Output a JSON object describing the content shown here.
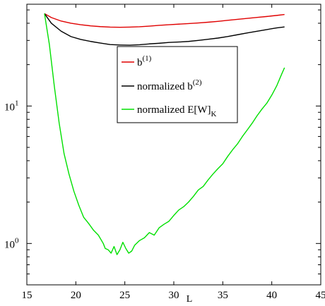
{
  "chart_data": {
    "type": "line",
    "title": "",
    "xlabel": "L",
    "ylabel": "",
    "xlim": [
      15,
      45
    ],
    "ylim": [
      0.5,
      55
    ],
    "yscale": "log",
    "grid": false,
    "legend_position": "center",
    "x_ticks": [
      {
        "value": 15,
        "label": "15"
      },
      {
        "value": 20,
        "label": "20"
      },
      {
        "value": 25,
        "label": "25"
      },
      {
        "value": 30,
        "label": "30"
      },
      {
        "value": 35,
        "label": "35"
      },
      {
        "value": 40,
        "label": "40"
      },
      {
        "value": 45,
        "label": "45"
      }
    ],
    "y_ticks": [
      {
        "value": 1,
        "base": "10",
        "exp": "0"
      },
      {
        "value": 10,
        "base": "10",
        "exp": "1"
      }
    ],
    "legend": [
      {
        "color": "#e00000",
        "base": "b",
        "sup": "(1)",
        "sub": ""
      },
      {
        "color": "#000000",
        "base": "normalized b",
        "sup": "(2)",
        "sub": ""
      },
      {
        "color": "#00e000",
        "base": "normalized E[W]",
        "sup": "",
        "sub": "K"
      }
    ],
    "series": [
      {
        "name": "b(1)",
        "color": "#e00000",
        "x": [
          16.8,
          17.5,
          18.5,
          19.5,
          20.5,
          21.5,
          22.5,
          23.5,
          24.5,
          25.5,
          26.5,
          27.5,
          28.5,
          29.5,
          30.5,
          31.5,
          32.5,
          33.5,
          34.5,
          35.5,
          36.5,
          37.5,
          38.5,
          39.5,
          40.5,
          41.3
        ],
        "y": [
          47,
          44,
          41.5,
          40,
          39,
          38.3,
          37.8,
          37.5,
          37.4,
          37.5,
          37.7,
          38.1,
          38.6,
          39,
          39.4,
          39.8,
          40.2,
          40.7,
          41.3,
          42,
          42.7,
          43.4,
          44.1,
          44.8,
          45.6,
          46.3
        ]
      },
      {
        "name": "normalized b(2)",
        "color": "#000000",
        "x": [
          16.8,
          17.5,
          18.5,
          19.5,
          20.5,
          21.5,
          22.5,
          23.5,
          24.5,
          25.5,
          26.5,
          27.5,
          28.5,
          29.5,
          30.5,
          31.5,
          32.5,
          33.5,
          34.5,
          35.5,
          36.5,
          37.5,
          38.5,
          39.5,
          40.5,
          41.3
        ],
        "y": [
          47,
          40,
          35,
          32,
          30.5,
          29.5,
          28.7,
          28,
          27.8,
          27.7,
          27.9,
          28.3,
          28.6,
          29,
          29.2,
          29.5,
          30,
          30.6,
          31.2,
          32,
          33,
          34,
          35,
          36,
          37,
          37.6
        ]
      },
      {
        "name": "normalized E[W]K",
        "color": "#00e000",
        "x": [
          16.8,
          17.3,
          17.8,
          18.3,
          18.8,
          19.3,
          19.8,
          20.3,
          20.8,
          21.3,
          21.8,
          22.3,
          22.8,
          23.0,
          23.3,
          23.6,
          23.9,
          24.2,
          24.5,
          24.8,
          25.1,
          25.4,
          25.7,
          26.0,
          26.5,
          27.0,
          27.5,
          28.0,
          28.5,
          29.0,
          29.5,
          30.0,
          30.5,
          31.0,
          31.5,
          32.0,
          32.5,
          33.0,
          33.5,
          34.0,
          34.5,
          35.0,
          35.5,
          36.0,
          36.5,
          37.0,
          37.5,
          38.0,
          38.5,
          39.0,
          39.5,
          40.0,
          40.5,
          41.0,
          41.3
        ],
        "y": [
          47,
          28,
          14,
          7.5,
          4.5,
          3.2,
          2.4,
          1.9,
          1.55,
          1.4,
          1.25,
          1.15,
          1.0,
          0.92,
          0.9,
          0.85,
          0.95,
          0.83,
          0.9,
          1.02,
          0.92,
          0.85,
          0.88,
          0.97,
          1.05,
          1.1,
          1.2,
          1.15,
          1.3,
          1.38,
          1.45,
          1.6,
          1.75,
          1.85,
          2.0,
          2.2,
          2.45,
          2.6,
          2.9,
          3.2,
          3.5,
          3.8,
          4.3,
          4.8,
          5.3,
          6.0,
          6.7,
          7.5,
          8.5,
          9.5,
          10.5,
          12.0,
          14.0,
          17.0,
          19.0
        ]
      }
    ]
  }
}
